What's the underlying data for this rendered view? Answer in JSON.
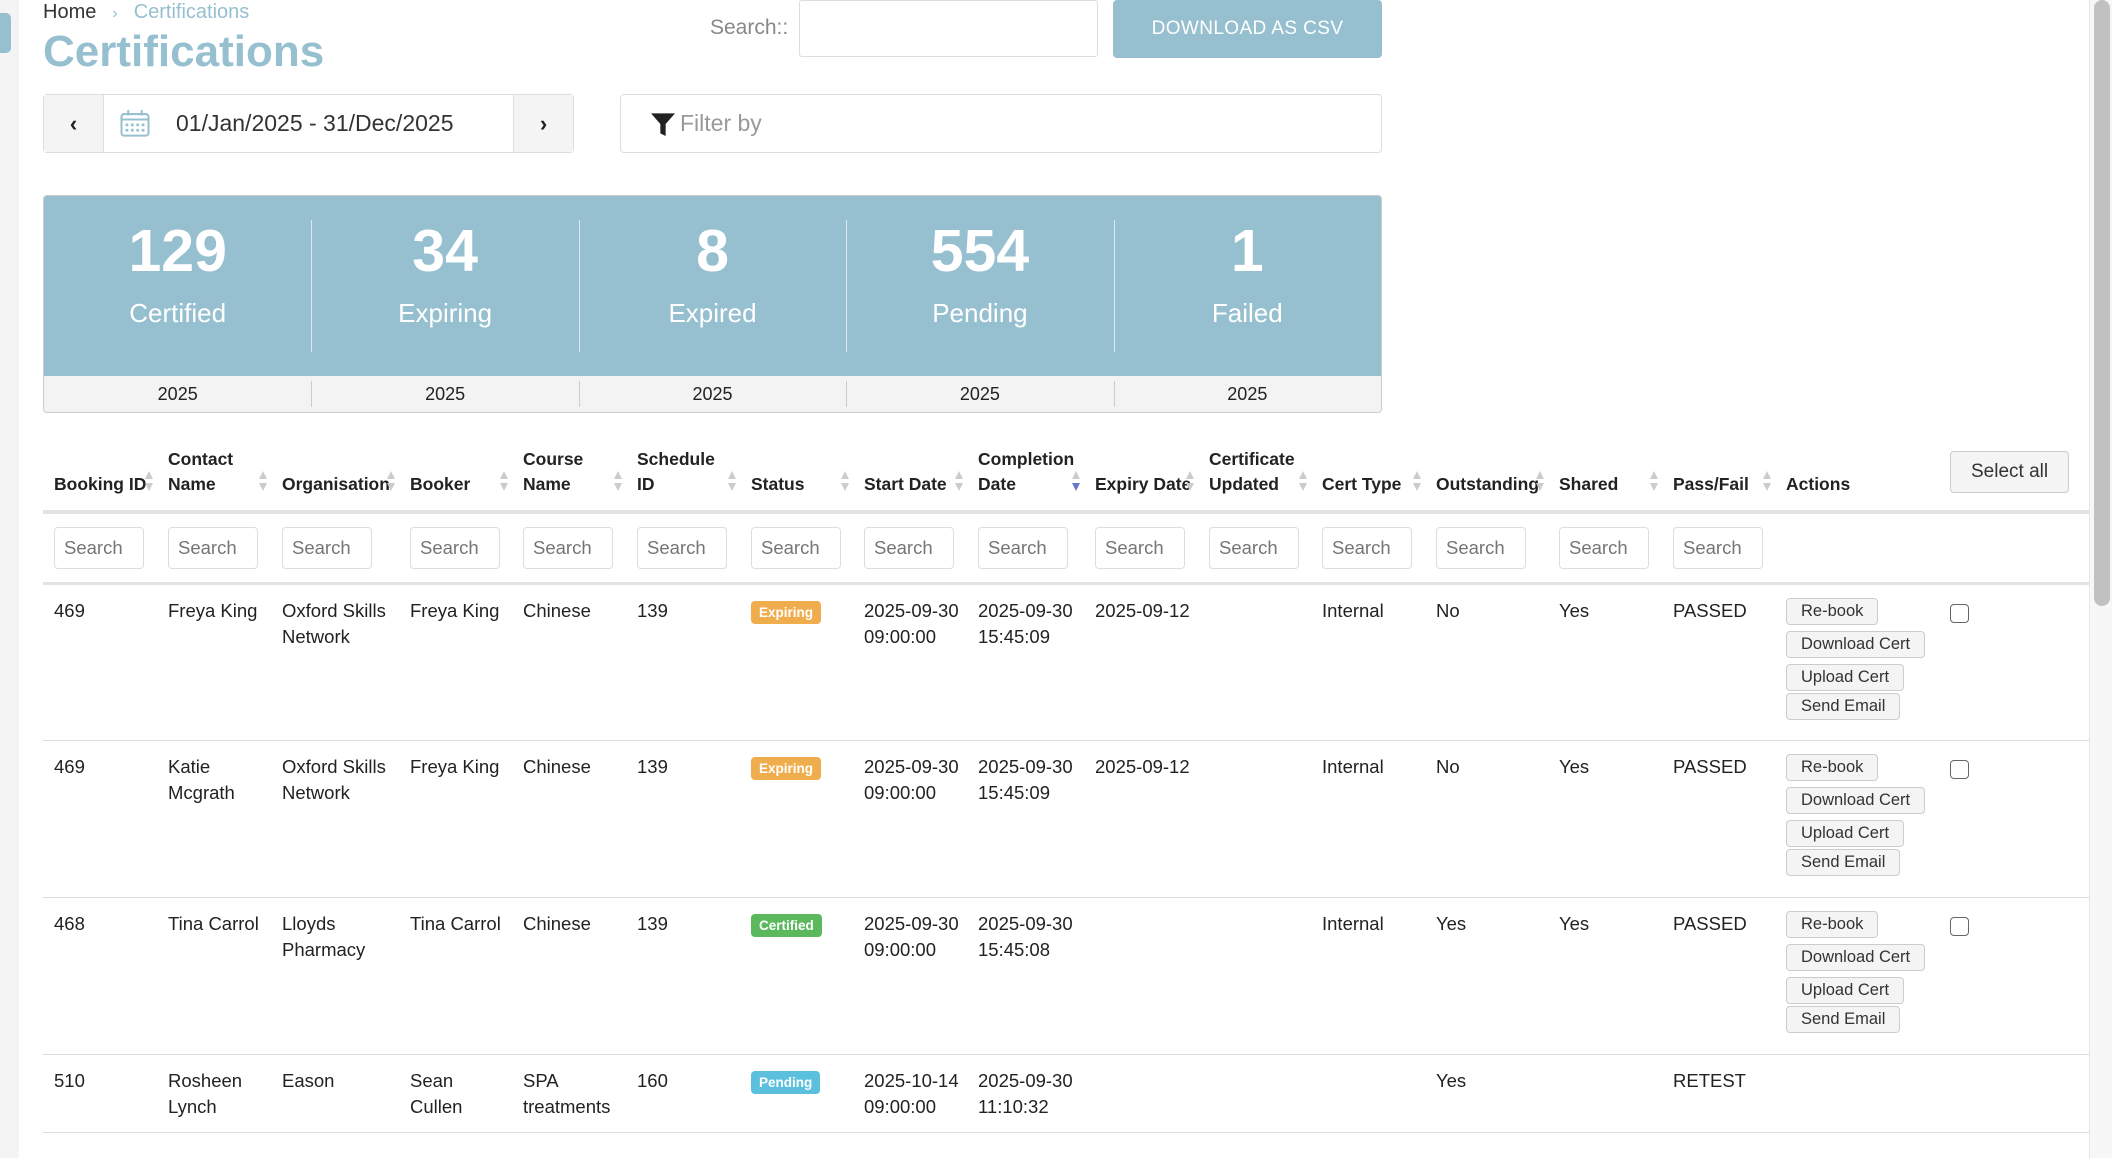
{
  "breadcrumb": {
    "home": "Home",
    "separator": "›",
    "current": "Certifications"
  },
  "page_title": "Certifications",
  "search": {
    "label": "Search::",
    "value": ""
  },
  "download_csv": "DOWNLOAD AS CSV",
  "date_range": "01/Jan/2025 - 31/Dec/2025",
  "filter_placeholder": "Filter by",
  "colors": {
    "accent": "#96c0d0",
    "expiring": "#f0ad4e",
    "certified": "#5cb85c",
    "pending": "#5bc0de"
  },
  "stats": [
    {
      "value": "129",
      "label": "Certified",
      "year": "2025"
    },
    {
      "value": "34",
      "label": "Expiring",
      "year": "2025"
    },
    {
      "value": "8",
      "label": "Expired",
      "year": "2025"
    },
    {
      "value": "554",
      "label": "Pending",
      "year": "2025"
    },
    {
      "value": "1",
      "label": "Failed",
      "year": "2025"
    }
  ],
  "table": {
    "columns": [
      "Booking ID",
      "Contact Name",
      "Organisation",
      "Booker",
      "Course Name",
      "Schedule ID",
      "Status",
      "Start Date",
      "Completion Date",
      "Expiry Date",
      "Certificate Updated",
      "Cert Type",
      "Outstanding",
      "Shared",
      "Pass/Fail",
      "Actions"
    ],
    "sorted_column": "Completion Date",
    "search_placeholder": "Search",
    "select_all": "Select all",
    "action_labels": [
      "Re-book",
      "Download Cert",
      "Upload Cert",
      "Send Email"
    ],
    "rows": [
      {
        "booking_id": "469",
        "contact": "Freya King",
        "org": "Oxford Skills Network",
        "booker": "Freya King",
        "course": "Chinese",
        "schedule": "139",
        "status": "Expiring",
        "start": "2025-09-30 09:00:00",
        "completion": "2025-09-30 15:45:09",
        "expiry": "2025-09-12",
        "updated": "",
        "cert_type": "Internal",
        "outstanding": "No",
        "shared": "Yes",
        "pass_fail": "PASSED",
        "actions": true
      },
      {
        "booking_id": "469",
        "contact": "Katie Mcgrath",
        "org": "Oxford Skills Network",
        "booker": "Freya King",
        "course": "Chinese",
        "schedule": "139",
        "status": "Expiring",
        "start": "2025-09-30 09:00:00",
        "completion": "2025-09-30 15:45:09",
        "expiry": "2025-09-12",
        "updated": "",
        "cert_type": "Internal",
        "outstanding": "No",
        "shared": "Yes",
        "pass_fail": "PASSED",
        "actions": true
      },
      {
        "booking_id": "468",
        "contact": "Tina Carrol",
        "org": "Lloyds Pharmacy",
        "booker": "Tina Carrol",
        "course": "Chinese",
        "schedule": "139",
        "status": "Certified",
        "start": "2025-09-30 09:00:00",
        "completion": "2025-09-30 15:45:08",
        "expiry": "",
        "updated": "",
        "cert_type": "Internal",
        "outstanding": "Yes",
        "shared": "Yes",
        "pass_fail": "PASSED",
        "actions": true
      },
      {
        "booking_id": "510",
        "contact": "Rosheen Lynch",
        "org": "Eason",
        "booker": "Sean Cullen",
        "course": "SPA treatments",
        "schedule": "160",
        "status": "Pending",
        "start": "2025-10-14 09:00:00",
        "completion": "2025-09-30 11:10:32",
        "expiry": "",
        "updated": "",
        "cert_type": "",
        "outstanding": "Yes",
        "shared": "",
        "pass_fail": "RETEST",
        "actions": false
      }
    ]
  }
}
